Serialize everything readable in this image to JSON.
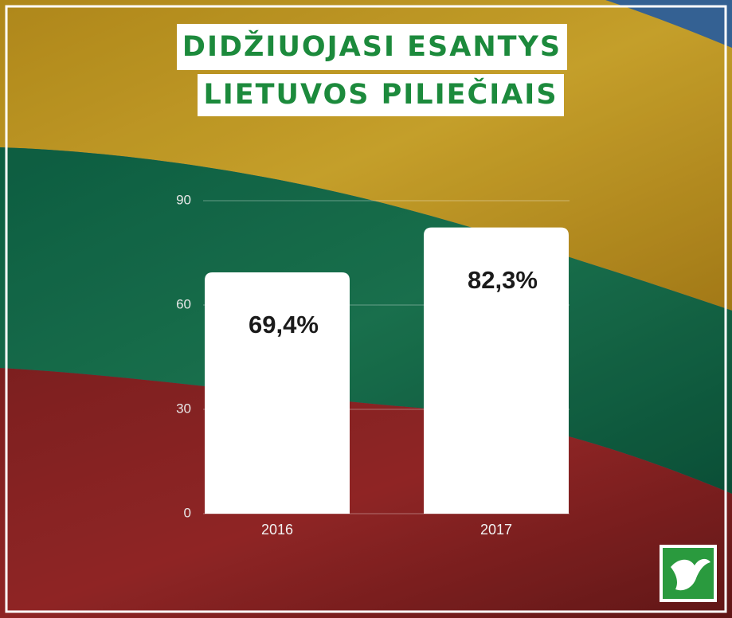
{
  "chart_data": {
    "type": "bar",
    "title": [
      "DIDŽIUOJASI ESANTYS",
      "LIETUVOS PILIEČIAIS"
    ],
    "categories": [
      "2016",
      "2017"
    ],
    "values": [
      69.4,
      82.3
    ],
    "value_labels": [
      "69,4%",
      "82,3%"
    ],
    "color": "#ffffff",
    "ylim": [
      0,
      90
    ],
    "yticks": [
      0,
      30,
      60,
      90
    ],
    "grid": true
  }
}
